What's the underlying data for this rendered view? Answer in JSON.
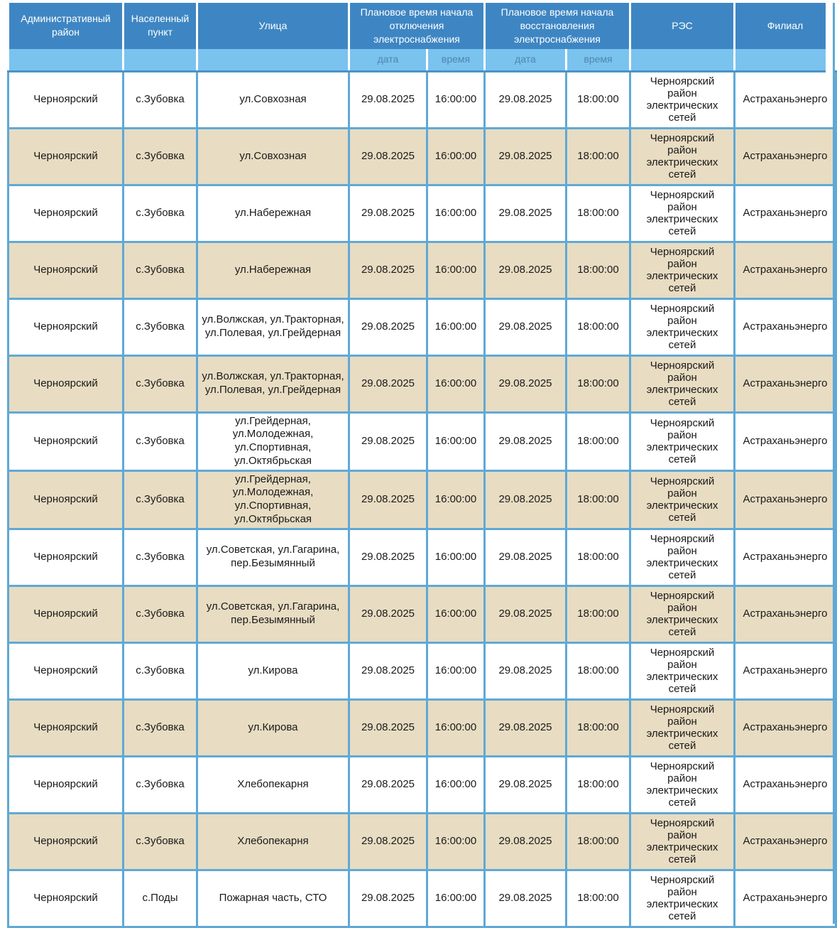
{
  "colors": {
    "header_bg": "#3e86c3",
    "subheader_bg": "#7ac3ee",
    "subheader_text": "#4f86ad",
    "header_text": "#ffffff",
    "body_text": "#1a1a1a",
    "border_blue": "#5fa9d6",
    "header_divider": "#4a93c7",
    "row_white": "#ffffff",
    "row_beige": "#e8dcc2"
  },
  "table": {
    "header": {
      "district": "Административный район",
      "settlement": "Населенный пункт",
      "street": "Улица",
      "outage_group": "Плановое время начала отключения электроснабжения",
      "restore_group": "Плановое время начала восстановления электроснабжения",
      "res": "РЭС",
      "branch": "Филиал",
      "sub_date": "дата",
      "sub_time": "время"
    },
    "rows": [
      {
        "district": "Черноярский",
        "settlement": "с.Зубовка",
        "street": "ул.Совхозная",
        "outage_date": "29.08.2025",
        "outage_time": "16:00:00",
        "restore_date": "29.08.2025",
        "restore_time": "18:00:00",
        "res": "Черноярский район электрических сетей",
        "branch": "Астраханьэнерго"
      },
      {
        "district": "Черноярский",
        "settlement": "с.Зубовка",
        "street": "ул.Совхозная",
        "outage_date": "29.08.2025",
        "outage_time": "16:00:00",
        "restore_date": "29.08.2025",
        "restore_time": "18:00:00",
        "res": "Черноярский район электрических сетей",
        "branch": "Астраханьэнерго"
      },
      {
        "district": "Черноярский",
        "settlement": "с.Зубовка",
        "street": "ул.Набережная",
        "outage_date": "29.08.2025",
        "outage_time": "16:00:00",
        "restore_date": "29.08.2025",
        "restore_time": "18:00:00",
        "res": "Черноярский район электрических сетей",
        "branch": "Астраханьэнерго"
      },
      {
        "district": "Черноярский",
        "settlement": "с.Зубовка",
        "street": "ул.Набережная",
        "outage_date": "29.08.2025",
        "outage_time": "16:00:00",
        "restore_date": "29.08.2025",
        "restore_time": "18:00:00",
        "res": "Черноярский район электрических сетей",
        "branch": "Астраханьэнерго"
      },
      {
        "district": "Черноярский",
        "settlement": "с.Зубовка",
        "street": "ул.Волжская, ул.Тракторная, ул.Полевая, ул.Грейдерная",
        "outage_date": "29.08.2025",
        "outage_time": "16:00:00",
        "restore_date": "29.08.2025",
        "restore_time": "18:00:00",
        "res": "Черноярский район электрических сетей",
        "branch": "Астраханьэнерго"
      },
      {
        "district": "Черноярский",
        "settlement": "с.Зубовка",
        "street": "ул.Волжская, ул.Тракторная, ул.Полевая, ул.Грейдерная",
        "outage_date": "29.08.2025",
        "outage_time": "16:00:00",
        "restore_date": "29.08.2025",
        "restore_time": "18:00:00",
        "res": "Черноярский район электрических сетей",
        "branch": "Астраханьэнерго"
      },
      {
        "district": "Черноярский",
        "settlement": "с.Зубовка",
        "street": "ул.Грейдерная, ул.Молодежная, ул.Спортивная, ул.Октябрьская",
        "outage_date": "29.08.2025",
        "outage_time": "16:00:00",
        "restore_date": "29.08.2025",
        "restore_time": "18:00:00",
        "res": "Черноярский район электрических сетей",
        "branch": "Астраханьэнерго"
      },
      {
        "district": "Черноярский",
        "settlement": "с.Зубовка",
        "street": "ул.Грейдерная, ул.Молодежная, ул.Спортивная, ул.Октябрьская",
        "outage_date": "29.08.2025",
        "outage_time": "16:00:00",
        "restore_date": "29.08.2025",
        "restore_time": "18:00:00",
        "res": "Черноярский район электрических сетей",
        "branch": "Астраханьэнерго"
      },
      {
        "district": "Черноярский",
        "settlement": "с.Зубовка",
        "street": "ул.Советская, ул.Гагарина, пер.Безымянный",
        "outage_date": "29.08.2025",
        "outage_time": "16:00:00",
        "restore_date": "29.08.2025",
        "restore_time": "18:00:00",
        "res": "Черноярский район электрических сетей",
        "branch": "Астраханьэнерго"
      },
      {
        "district": "Черноярский",
        "settlement": "с.Зубовка",
        "street": "ул.Советская, ул.Гагарина, пер.Безымянный",
        "outage_date": "29.08.2025",
        "outage_time": "16:00:00",
        "restore_date": "29.08.2025",
        "restore_time": "18:00:00",
        "res": "Черноярский район электрических сетей",
        "branch": "Астраханьэнерго"
      },
      {
        "district": "Черноярский",
        "settlement": "с.Зубовка",
        "street": "ул.Кирова",
        "outage_date": "29.08.2025",
        "outage_time": "16:00:00",
        "restore_date": "29.08.2025",
        "restore_time": "18:00:00",
        "res": "Черноярский район электрических сетей",
        "branch": "Астраханьэнерго"
      },
      {
        "district": "Черноярский",
        "settlement": "с.Зубовка",
        "street": "ул.Кирова",
        "outage_date": "29.08.2025",
        "outage_time": "16:00:00",
        "restore_date": "29.08.2025",
        "restore_time": "18:00:00",
        "res": "Черноярский район электрических сетей",
        "branch": "Астраханьэнерго"
      },
      {
        "district": "Черноярский",
        "settlement": "с.Зубовка",
        "street": "Хлебопекарня",
        "outage_date": "29.08.2025",
        "outage_time": "16:00:00",
        "restore_date": "29.08.2025",
        "restore_time": "18:00:00",
        "res": "Черноярский район электрических сетей",
        "branch": "Астраханьэнерго"
      },
      {
        "district": "Черноярский",
        "settlement": "с.Зубовка",
        "street": "Хлебопекарня",
        "outage_date": "29.08.2025",
        "outage_time": "16:00:00",
        "restore_date": "29.08.2025",
        "restore_time": "18:00:00",
        "res": "Черноярский район электрических сетей",
        "branch": "Астраханьэнерго"
      },
      {
        "district": "Черноярский",
        "settlement": "с.Поды",
        "street": "Пожарная часть, СТО",
        "outage_date": "29.08.2025",
        "outage_time": "16:00:00",
        "restore_date": "29.08.2025",
        "restore_time": "18:00:00",
        "res": "Черноярский район электрических сетей",
        "branch": "Астраханьэнерго"
      }
    ]
  }
}
